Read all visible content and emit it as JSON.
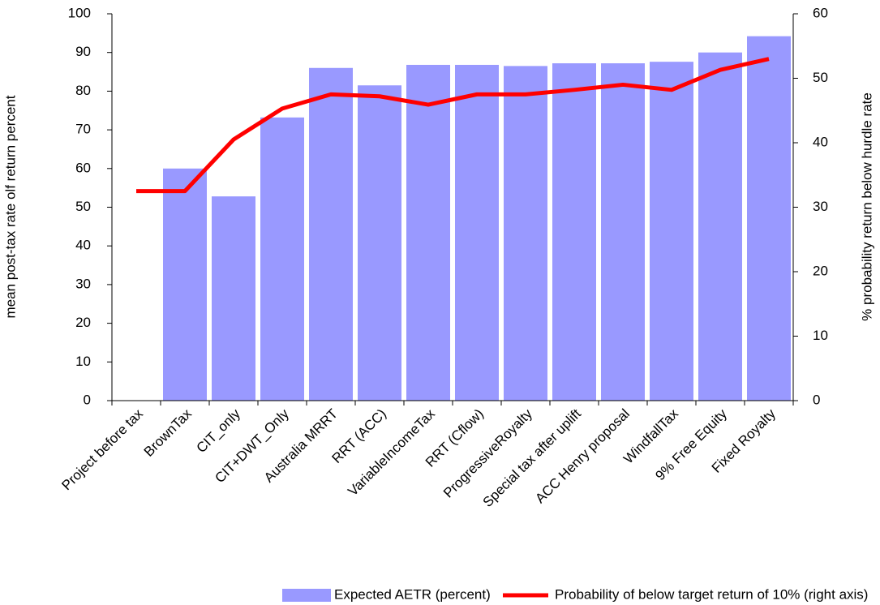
{
  "chart_data": {
    "type": "bar",
    "categories": [
      "Project before tax",
      "BrownTax",
      "CIT_only",
      "CIT+DWT_Only",
      "Australia MRRT",
      "RRT (ACC)",
      "VariableIncomeTax",
      "RRT (Cflow)",
      "ProgressiveRoyalty",
      "Special tax after uplift",
      "ACC Henry proposal",
      "WindfallTax",
      "9% Free Equity",
      "Fixed Royalty"
    ],
    "series": [
      {
        "name": "Expected AETR (percent)",
        "type": "bar",
        "color": "#9999ff",
        "values": [
          null,
          60,
          52.8,
          73.2,
          86,
          81.5,
          86.8,
          86.8,
          86.5,
          87.2,
          87.2,
          87.6,
          90,
          94.2
        ]
      },
      {
        "name": "Probability of below target return of 10% (right axis)",
        "type": "line",
        "axis": "y2",
        "color": "#ff0000",
        "values": [
          32.5,
          32.5,
          40.5,
          45.3,
          47.5,
          47.2,
          45.9,
          47.5,
          47.5,
          48.2,
          49,
          48.2,
          51.3,
          53
        ]
      }
    ],
    "ylabel": "mean post-tax rate olf return percent",
    "y2label": "% probability return below hurdle rate",
    "ylim": [
      0,
      100
    ],
    "yticks": [
      0,
      10,
      20,
      30,
      40,
      50,
      60,
      70,
      80,
      90,
      100
    ],
    "y2lim": [
      0,
      60
    ],
    "y2ticks": [
      0,
      10,
      20,
      30,
      40,
      50,
      60
    ],
    "legend": "bottom"
  }
}
